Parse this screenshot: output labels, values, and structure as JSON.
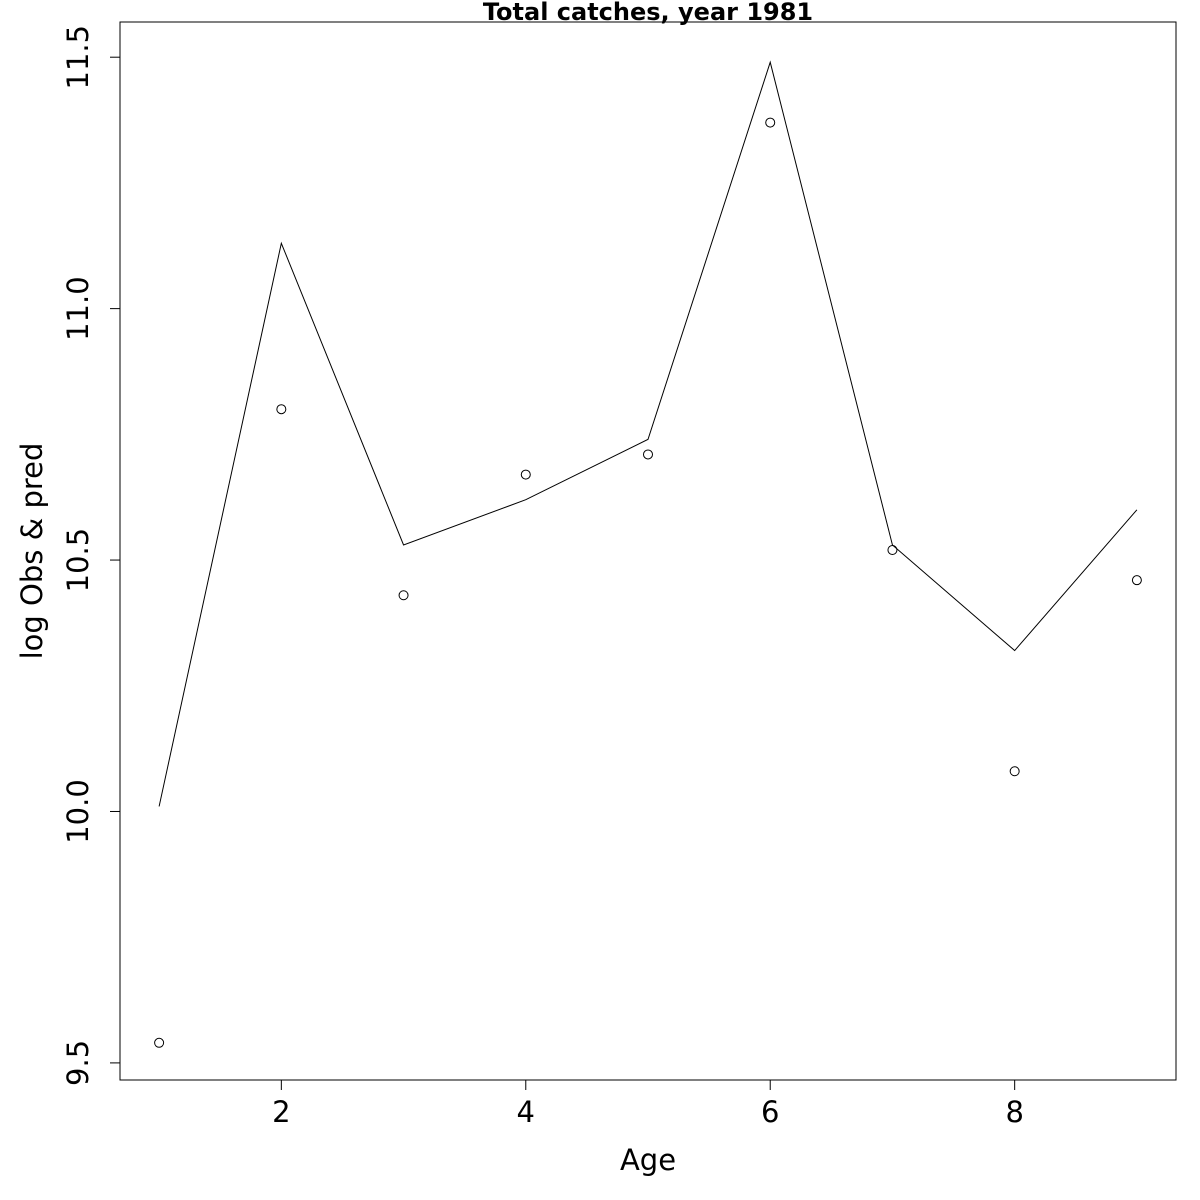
{
  "chart_data": {
    "type": "line",
    "title": "Total catches, year 1981",
    "xlabel": "Age",
    "ylabel": "log Obs & pred",
    "x": [
      1,
      2,
      3,
      4,
      5,
      6,
      7,
      8,
      9
    ],
    "series": [
      {
        "kind": "line",
        "color": "#000000",
        "values": [
          10.01,
          11.13,
          10.53,
          10.62,
          10.74,
          11.49,
          10.53,
          10.32,
          10.6
        ]
      },
      {
        "kind": "points",
        "color": "#000000",
        "values": [
          9.54,
          10.8,
          10.43,
          10.67,
          10.71,
          11.37,
          10.52,
          10.08,
          10.46
        ]
      }
    ],
    "xlim": [
      0.68,
      9.32
    ],
    "xticks": [
      2,
      4,
      6,
      8
    ],
    "ylim": [
      9.466,
      11.57
    ],
    "yticks": [
      9.5,
      {
        "value": 10,
        "label": "10.0"
      },
      10.5,
      {
        "value": 11,
        "label": "11.0"
      },
      11.5
    ]
  }
}
